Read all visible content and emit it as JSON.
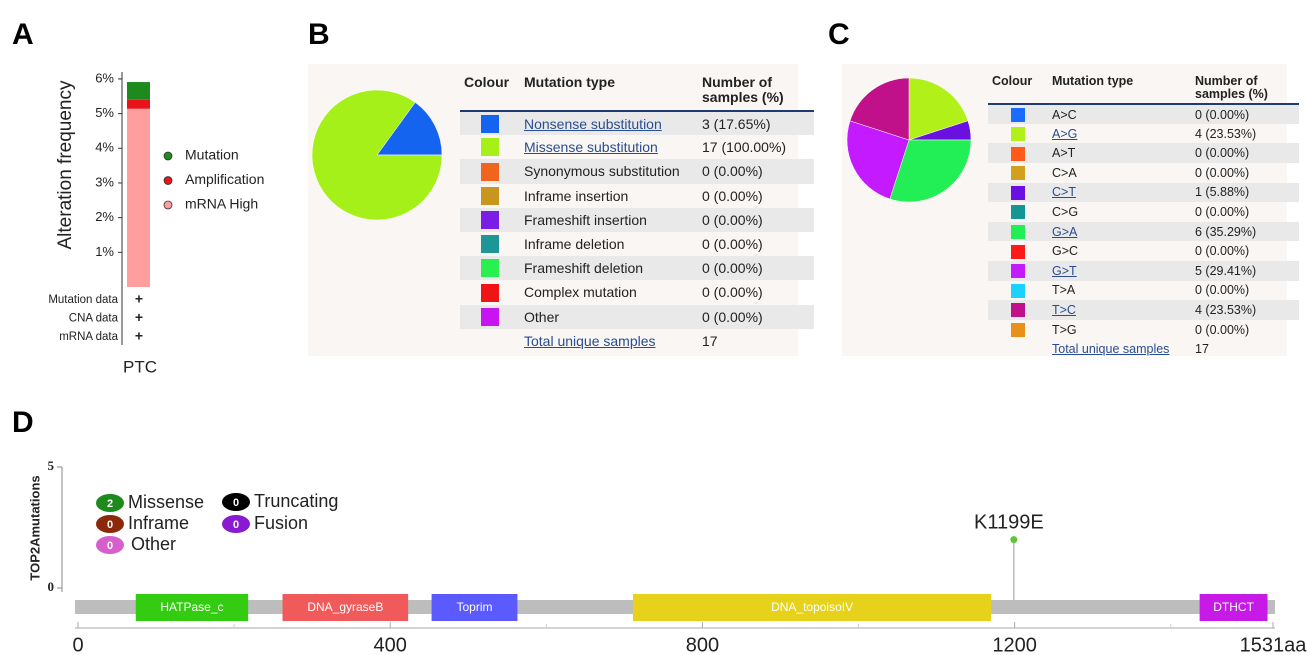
{
  "chart_data": [
    {
      "panel": "A",
      "type": "stacked-bar",
      "ylabel": "Alteration frequency",
      "categories": [
        "PTC"
      ],
      "series": [
        {
          "name": "mRNA High",
          "color": "#ff9e9e",
          "values": [
            5.14
          ]
        },
        {
          "name": "Amplification",
          "color": "#e8131b",
          "values": [
            0.26
          ]
        },
        {
          "name": "Mutation",
          "color": "#1c8a1c",
          "values": [
            0.51
          ]
        }
      ],
      "ylim": [
        0,
        6.2
      ],
      "yticks": [
        {
          "value": 1,
          "label": "1%"
        },
        {
          "value": 2,
          "label": "2%"
        },
        {
          "value": 3,
          "label": "3%"
        },
        {
          "value": 4,
          "label": "4%"
        },
        {
          "value": 5,
          "label": "5%"
        },
        {
          "value": 6,
          "label": "6%"
        }
      ],
      "profiles": [
        "Mutation data",
        "CNA data",
        "mRNA data"
      ],
      "profile_marks": [
        "+",
        "+",
        "+"
      ]
    },
    {
      "panel": "B",
      "type": "pie",
      "columns": [
        "Colour",
        "Mutation type",
        "Number of samples (%)"
      ],
      "categories": [
        "Nonsense substitution",
        "Missense substitution",
        "Synonymous substitution",
        "Inframe insertion",
        "Frameshift insertion",
        "Inframe deletion",
        "Frameshift deletion",
        "Complex mutation",
        "Other"
      ],
      "colors": [
        "#1464f0",
        "#a6f01a",
        "#f0641e",
        "#c8961e",
        "#7a1ee6",
        "#1e9696",
        "#28f050",
        "#f01414",
        "#c814f0"
      ],
      "values": [
        3,
        17,
        0,
        0,
        0,
        0,
        0,
        0,
        0
      ],
      "value_labels": [
        "3 (17.65%)",
        "17 (100.00%)",
        "0 (0.00%)",
        "0 (0.00%)",
        "0 (0.00%)",
        "0 (0.00%)",
        "0 (0.00%)",
        "0 (0.00%)",
        "0 (0.00%)"
      ],
      "total_label": "Total unique samples",
      "total": 17
    },
    {
      "panel": "C",
      "type": "pie",
      "columns": [
        "Colour",
        "Mutation type",
        "Number of samples (%)"
      ],
      "categories": [
        "A>C",
        "A>G",
        "A>T",
        "C>A",
        "C>T",
        "C>G",
        "G>A",
        "G>C",
        "G>T",
        "T>A",
        "T>C",
        "T>G"
      ],
      "colors": [
        "#1a6cff",
        "#b2f01a",
        "#ff5a1a",
        "#d2a01a",
        "#6a10e0",
        "#149696",
        "#22ee55",
        "#ff1a1a",
        "#c41aff",
        "#1ad2ff",
        "#c0118a",
        "#e8901a"
      ],
      "values": [
        0,
        4,
        0,
        0,
        1,
        0,
        6,
        0,
        5,
        0,
        4,
        0
      ],
      "value_labels": [
        "0 (0.00%)",
        "4 (23.53%)",
        "0 (0.00%)",
        "0 (0.00%)",
        "1 (5.88%)",
        "0 (0.00%)",
        "6 (35.29%)",
        "0 (0.00%)",
        "5 (29.41%)",
        "0 (0.00%)",
        "4 (23.53%)",
        "0 (0.00%)"
      ],
      "total_label": "Total unique samples",
      "total": 17
    },
    {
      "panel": "D",
      "type": "lollipop",
      "ylabel": "TOP2Amutations",
      "xlim": [
        0,
        1531
      ],
      "xticks": [
        0,
        400,
        800,
        1200,
        {
          "value": 1531,
          "label": "1531aa"
        }
      ],
      "xminor_ticks": [
        200,
        600,
        1000,
        1400
      ],
      "ylim": [
        0,
        5
      ],
      "yticks": [
        0,
        5
      ],
      "points": [
        {
          "label": "K1199E",
          "x": 1199,
          "value": 2,
          "color": "#5fc43a"
        }
      ],
      "domains": [
        {
          "name": "HATPase_c",
          "start": 74,
          "end": 218,
          "color": "#33cc11"
        },
        {
          "name": "DNA_gyraseB",
          "start": 262,
          "end": 423,
          "color": "#f05a5a"
        },
        {
          "name": "Toprim",
          "start": 453,
          "end": 563,
          "color": "#5a5aff"
        },
        {
          "name": "DNA_topoisoIV",
          "start": 711,
          "end": 1170,
          "color": "#e6d21a"
        },
        {
          "name": "DTHCT",
          "start": 1437,
          "end": 1524,
          "color": "#c81ae6"
        }
      ],
      "legend": [
        {
          "name": "Missense",
          "count": 2,
          "color": "#1e8a1e"
        },
        {
          "name": "Inframe",
          "count": 0,
          "color": "#8b2a0a"
        },
        {
          "name": "Other",
          "count": 0,
          "color": "#d75fcc"
        },
        {
          "name": "Truncating",
          "count": 0,
          "color": "#000000"
        },
        {
          "name": "Fusion",
          "count": 0,
          "color": "#8a1ad2"
        }
      ]
    }
  ]
}
